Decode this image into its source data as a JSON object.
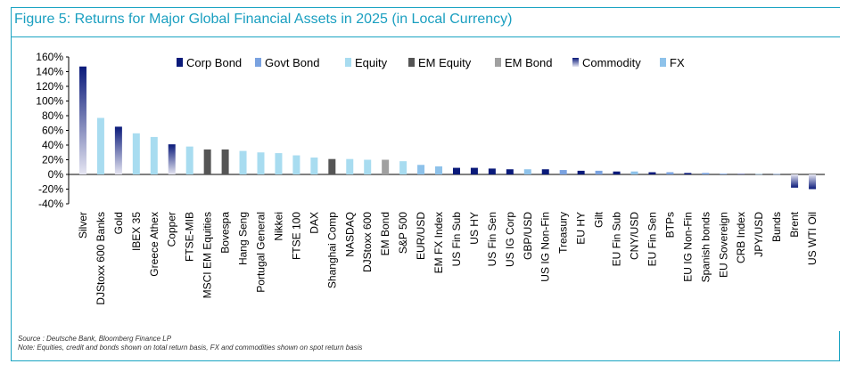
{
  "title": "Figure 5: Returns for Major Global Financial Assets in 2025 (in Local Currency)",
  "footer": {
    "source": "Source : Deutsche Bank, Bloomberg Finance LP",
    "note": "Note: Equities, credit and bonds shown on total return basis, FX and commodities shown on spot return basis"
  },
  "colors": {
    "accent": "#1aa3c2",
    "corp_bond": "#0a1a7a",
    "govt_bond": "#7aa2e0",
    "equity": "#a8dcf0",
    "em_equity": "#555555",
    "em_bond": "#a0a0a0",
    "commodity_top": "#0a1a7a",
    "commodity_bottom": "#e6e6f2",
    "fx": "#8ec2ea"
  },
  "chart_data": {
    "type": "bar",
    "title": "Figure 5: Returns for Major Global Financial Assets in 2025 (in Local Currency)",
    "xlabel": "",
    "ylabel": "",
    "ylim": [
      -40,
      160
    ],
    "yticks": [
      -40,
      -20,
      0,
      20,
      40,
      60,
      80,
      100,
      120,
      140,
      160
    ],
    "ytick_labels": [
      "-40%",
      "-20%",
      "0%",
      "20%",
      "40%",
      "60%",
      "80%",
      "100%",
      "120%",
      "140%",
      "160%"
    ],
    "legend": [
      {
        "key": "corp",
        "label": "Corp Bond"
      },
      {
        "key": "govt",
        "label": "Govt Bond"
      },
      {
        "key": "equity",
        "label": "Equity"
      },
      {
        "key": "emeq",
        "label": "EM Equity"
      },
      {
        "key": "embond",
        "label": "EM Bond"
      },
      {
        "key": "commodity",
        "label": "Commodity"
      },
      {
        "key": "fx",
        "label": "FX"
      }
    ],
    "categories": [
      "Silver",
      "DJStoxx 600 Banks",
      "Gold",
      "IBEX 35",
      "Greece Athex",
      "Copper",
      "FTSE-MIB",
      "MSCI EM Equities",
      "Bovespa",
      "Hang Seng",
      "Portugal General",
      "Nikkei",
      "FTSE 100",
      "DAX",
      "Shanghai Comp",
      "NASDAQ",
      "DJStoxx 600",
      "EM Bond",
      "S&P 500",
      "EUR/USD",
      "EM FX Index",
      "US Fin Sub",
      "US HY",
      "US Fin Sen",
      "US IG Corp",
      "GBP/USD",
      "US IG Non-Fin",
      "Treasury",
      "EU HY",
      "Gilt",
      "EU Fin Sub",
      "CNY/USD",
      "EU Fin Sen",
      "BTPs",
      "EU IG Non-Fin",
      "Spanish bonds",
      "EU Sovereign",
      "CRB Index",
      "JPY/USD",
      "Bunds",
      "Brent",
      "US WTI Oil"
    ],
    "values": [
      147,
      77,
      65,
      56,
      51,
      41,
      38,
      34,
      34,
      32,
      30,
      29,
      26,
      23,
      21,
      21,
      20,
      20,
      18,
      13,
      11,
      9,
      9,
      8,
      7,
      7,
      7,
      6,
      5,
      5,
      4,
      4,
      3,
      3,
      2,
      2,
      1,
      1,
      0.5,
      0.5,
      -18,
      -20
    ],
    "groups": [
      "commodity",
      "equity",
      "commodity",
      "equity",
      "equity",
      "commodity",
      "equity",
      "emeq",
      "emeq",
      "equity",
      "equity",
      "equity",
      "equity",
      "equity",
      "emeq",
      "equity",
      "equity",
      "embond",
      "equity",
      "fx",
      "fx",
      "corp",
      "corp",
      "corp",
      "corp",
      "fx",
      "corp",
      "govt",
      "corp",
      "govt",
      "corp",
      "fx",
      "corp",
      "govt",
      "corp",
      "govt",
      "govt",
      "commodity",
      "fx",
      "govt",
      "commodity",
      "commodity"
    ]
  }
}
